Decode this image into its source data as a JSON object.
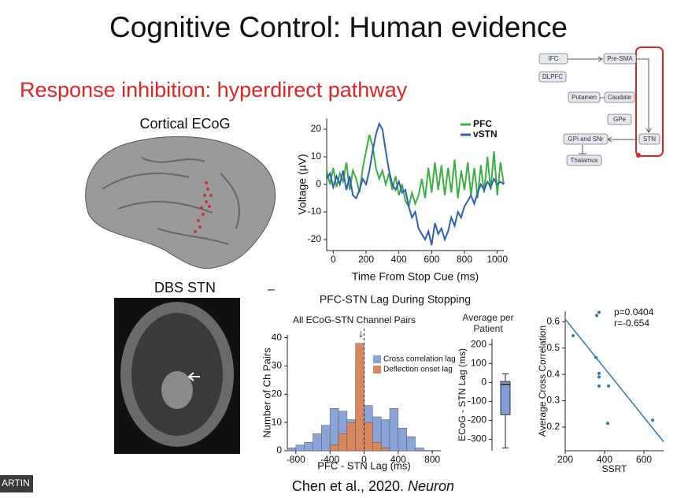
{
  "slide": {
    "title": "Cognitive Control: Human evidence",
    "subtitle": "Response inhibition: hyperdirect pathway",
    "ecog_label": "Cortical ECoG",
    "dbs_label": "DBS STN",
    "dash": "–",
    "citation": "Chen et al., 2020.",
    "citation_journal": "Neuron",
    "name_tag": "ARTIN"
  },
  "diagram": {
    "nodes": [
      "IFC",
      "Pre-SMA",
      "DLPFC",
      "Putamen",
      "Caudate",
      "GPe",
      "GPi and SNr",
      "STN",
      "Thalamus"
    ]
  },
  "chart_data": [
    {
      "type": "line",
      "xlabel": "Time From Stop Cue (ms)",
      "ylabel": "Voltage (µV)",
      "x": [
        -40,
        -20,
        0,
        20,
        40,
        60,
        80,
        100,
        120,
        140,
        160,
        180,
        200,
        220,
        240,
        260,
        280,
        300,
        320,
        340,
        360,
        380,
        400,
        420,
        440,
        460,
        480,
        500,
        520,
        540,
        560,
        580,
        600,
        620,
        640,
        660,
        680,
        700,
        720,
        740,
        760,
        780,
        800,
        820,
        840,
        860,
        880,
        900,
        920,
        940,
        960,
        980,
        1000,
        1020,
        1040
      ],
      "series": [
        {
          "name": "PFC",
          "color": "#3cb043",
          "values": [
            5,
            0,
            6,
            -1,
            4,
            1,
            8,
            -2,
            5,
            2,
            -3,
            6,
            12,
            18,
            14,
            6,
            2,
            5,
            0,
            4,
            -2,
            3,
            -4,
            0,
            -6,
            -8,
            -3,
            -7,
            -4,
            2,
            -5,
            6,
            -3,
            8,
            -2,
            7,
            -4,
            6,
            -3,
            9,
            -5,
            5,
            -2,
            8,
            -4,
            6,
            -5,
            7,
            -3,
            10,
            -2,
            12,
            -4,
            8,
            0
          ]
        },
        {
          "name": "vSTN",
          "color": "#2f5fb0",
          "values": [
            2,
            4,
            -1,
            3,
            0,
            5,
            -2,
            3,
            -4,
            -5,
            -2,
            2,
            0,
            5,
            12,
            18,
            22,
            20,
            12,
            5,
            0,
            -2,
            1,
            -3,
            -2,
            -8,
            -12,
            -10,
            -16,
            -18,
            -20,
            -17,
            -22,
            -14,
            -18,
            -16,
            -20,
            -17,
            -12,
            -15,
            -10,
            -12,
            -8,
            -6,
            -4,
            -7,
            -3,
            0,
            -2,
            1,
            -1,
            2,
            0,
            1,
            0
          ]
        }
      ],
      "xlim": [
        -40,
        1040
      ],
      "ylim": [
        -24,
        24
      ],
      "xticks": [
        0,
        200,
        400,
        600,
        800,
        1000
      ],
      "yticks": [
        -20,
        -10,
        0,
        10,
        20
      ]
    },
    {
      "type": "histogram",
      "title": "PFC-STN Lag During Stopping",
      "subtitle": "All ECoG-STN Channel Pairs",
      "xlabel": "PFC - STN Lag (ms)",
      "ylabel": "Number of Ch Pairs",
      "bins": [
        -900,
        -800,
        -700,
        -600,
        -500,
        -400,
        -300,
        -200,
        -100,
        0,
        100,
        200,
        300,
        400,
        500,
        600,
        700
      ],
      "series": [
        {
          "name": "Cross correlation lag",
          "color": "#8aa4d8",
          "values": [
            1,
            2,
            3,
            6,
            9,
            15,
            14,
            11,
            29,
            16,
            12,
            11,
            15,
            8,
            5,
            1
          ]
        },
        {
          "name": "Deflection onset lag",
          "color": "#d9875e",
          "values": [
            0,
            0,
            0,
            0,
            0,
            2,
            6,
            10,
            38,
            10,
            3,
            1,
            0,
            0,
            0,
            0
          ]
        }
      ],
      "xlim": [
        -900,
        900
      ],
      "ylim": [
        0,
        41
      ],
      "xticks": [
        -800,
        -400,
        0,
        400,
        800
      ],
      "yticks": [
        0,
        10,
        20,
        30,
        40
      ],
      "vline": 0,
      "annotation": "↓"
    },
    {
      "type": "box",
      "title": "Average per Patient",
      "ylabel": "ECoG - STN Lag (ms)",
      "color": "#7f9fd6",
      "min": -345,
      "q1": -170,
      "median": -10,
      "q3": 5,
      "max": 45,
      "ylim": [
        -360,
        230
      ],
      "yticks": [
        -300,
        -200,
        -100,
        0,
        100,
        200
      ]
    },
    {
      "type": "scatter",
      "xlabel": "SSRT",
      "ylabel": "Average Cross Correlation",
      "color": "#2a7ab8",
      "x": [
        240,
        356,
        360,
        372,
        372,
        372,
        372,
        420,
        416,
        644
      ],
      "y": [
        0.547,
        0.464,
        0.624,
        0.636,
        0.404,
        0.39,
        0.356,
        0.356,
        0.214,
        0.226
      ],
      "xlim": [
        200,
        700
      ],
      "ylim": [
        0.11,
        0.64
      ],
      "xticks": [
        200,
        400,
        600
      ],
      "yticks": [
        0.2,
        0.3,
        0.4,
        0.5,
        0.6
      ],
      "annotations": [
        "p=0.0404",
        "r=-0.654"
      ],
      "fit": {
        "x": [
          200,
          700
        ],
        "y": [
          0.61,
          0.144
        ]
      }
    }
  ]
}
